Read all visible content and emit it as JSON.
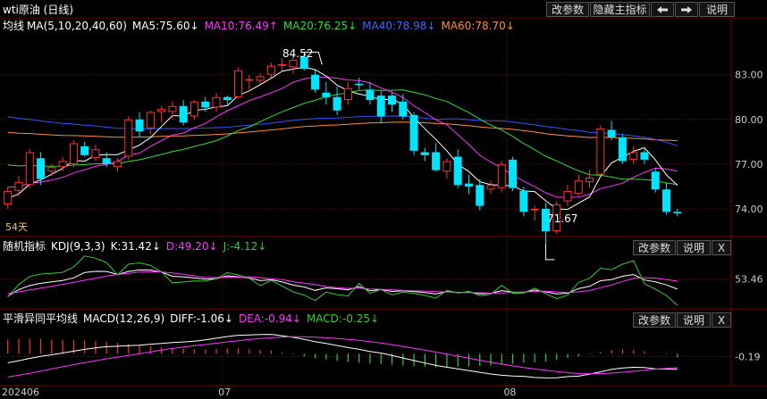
{
  "header": {
    "title": "wti原油 (日线)",
    "buttons": {
      "params": "改参数",
      "hide": "隐藏主指标",
      "left_icon": "arrow-left",
      "right_icon": "arrow-right",
      "help": "说明"
    }
  },
  "main_legend": {
    "name": "均线",
    "spec": "MA(5,10,20,40,60)",
    "ma5": "MA5:75.60↓",
    "ma10": "MA10:76.49↑",
    "ma20": "MA20:76.25↓",
    "ma40": "MA40:78.98↓",
    "ma60": "MA60:78.70↓"
  },
  "days_label": "54天",
  "high_annotation": "84.52",
  "low_annotation": "71.67",
  "kdj_legend": {
    "name": "随机指标",
    "spec": "KDJ(9,3,3)",
    "k": "K:31.42↓",
    "d": "D:49.20↓",
    "j": "J:-4.12↓"
  },
  "macd_legend": {
    "name": "平滑异同平均线",
    "spec": "MACD(12,26,9)",
    "diff": "DIFF:-1.06↓",
    "dea": "DEA:-0.94↓",
    "macd": "MACD:-0.25↓"
  },
  "panel_buttons": {
    "params": "改参数",
    "help": "说明",
    "close": "X"
  },
  "colors": {
    "up": "#ff3232",
    "down": "#00e5ff",
    "ma5": "#ffffff",
    "ma10": "#ff33ff",
    "ma20": "#33dd33",
    "ma40": "#3355ff",
    "ma60": "#ff8c3a",
    "grid": "#7a0000",
    "kdj_j": "#33cc33"
  },
  "chart_data": [
    {
      "type": "candlestick",
      "y_ticks": [
        "83.00",
        "80.00",
        "77.00",
        "74.00"
      ],
      "ylim": [
        72.2,
        85.8
      ],
      "x_ticks": [
        "202406",
        "07",
        "08"
      ],
      "candles": [
        [
          74.3,
          75.5,
          74.0,
          75.2
        ],
        [
          75.2,
          76.2,
          74.8,
          75.8
        ],
        [
          75.6,
          78.0,
          75.4,
          77.8
        ],
        [
          77.4,
          77.8,
          75.6,
          76.0
        ],
        [
          76.5,
          77.0,
          76.2,
          76.8
        ],
        [
          76.8,
          77.5,
          76.5,
          77.2
        ],
        [
          77.0,
          78.6,
          76.8,
          78.4
        ],
        [
          78.2,
          78.5,
          77.5,
          77.6
        ],
        [
          77.4,
          78.3,
          77.2,
          78.0
        ],
        [
          77.4,
          77.8,
          76.8,
          77.0
        ],
        [
          76.8,
          77.4,
          76.5,
          77.2
        ],
        [
          77.5,
          80.2,
          77.3,
          80.0
        ],
        [
          80.0,
          80.5,
          78.8,
          79.2
        ],
        [
          79.4,
          80.6,
          79.0,
          80.5
        ],
        [
          80.5,
          80.9,
          79.8,
          80.7
        ],
        [
          80.5,
          81.2,
          80.0,
          80.9
        ],
        [
          80.9,
          81.3,
          79.6,
          79.8
        ],
        [
          80.2,
          81.3,
          80.0,
          81.2
        ],
        [
          81.2,
          81.5,
          80.5,
          80.8
        ],
        [
          80.8,
          81.8,
          80.5,
          81.5
        ],
        [
          81.5,
          81.6,
          81.0,
          81.3
        ],
        [
          81.5,
          83.5,
          81.4,
          83.3
        ],
        [
          82.6,
          83.0,
          82.0,
          82.7
        ],
        [
          82.6,
          83.1,
          82.4,
          82.9
        ],
        [
          83.0,
          83.8,
          82.8,
          83.6
        ],
        [
          83.6,
          84.1,
          83.3,
          83.7
        ],
        [
          83.5,
          84.3,
          83.1,
          84.0
        ],
        [
          84.2,
          84.52,
          83.3,
          83.4
        ],
        [
          83.0,
          83.3,
          81.8,
          82.0
        ],
        [
          81.8,
          82.5,
          81.0,
          81.5
        ],
        [
          81.5,
          82.2,
          80.3,
          80.6
        ],
        [
          81.3,
          82.5,
          81.0,
          82.1
        ],
        [
          82.4,
          82.8,
          82.0,
          82.3
        ],
        [
          82.0,
          82.5,
          81.0,
          81.3
        ],
        [
          81.6,
          81.9,
          79.8,
          80.2
        ],
        [
          81.6,
          81.8,
          80.5,
          81.0
        ],
        [
          81.2,
          81.7,
          80.0,
          80.2
        ],
        [
          80.3,
          80.5,
          77.6,
          77.9
        ],
        [
          77.8,
          78.1,
          77.2,
          77.6
        ],
        [
          77.8,
          78.4,
          76.5,
          76.6
        ],
        [
          76.5,
          77.4,
          76.0,
          77.2
        ],
        [
          77.5,
          78.0,
          75.4,
          75.6
        ],
        [
          75.7,
          76.3,
          75.0,
          75.5
        ],
        [
          75.6,
          76.0,
          73.9,
          74.2
        ],
        [
          75.3,
          75.9,
          75.0,
          75.6
        ],
        [
          75.4,
          77.2,
          75.1,
          77.0
        ],
        [
          77.3,
          77.5,
          75.2,
          75.4
        ],
        [
          75.2,
          75.5,
          73.5,
          73.8
        ],
        [
          73.9,
          74.2,
          73.2,
          74.0
        ],
        [
          74.0,
          74.4,
          71.67,
          72.5
        ],
        [
          72.5,
          74.5,
          72.3,
          74.3
        ],
        [
          74.5,
          75.6,
          74.2,
          75.2
        ],
        [
          75.0,
          76.3,
          74.9,
          75.9
        ],
        [
          75.8,
          76.6,
          75.4,
          76.1
        ],
        [
          76.3,
          79.6,
          76.2,
          79.4
        ],
        [
          79.3,
          79.9,
          78.6,
          78.8
        ],
        [
          78.8,
          79.0,
          77.0,
          77.2
        ],
        [
          77.3,
          78.2,
          77.0,
          77.8
        ],
        [
          77.8,
          78.0,
          77.0,
          77.3
        ],
        [
          76.5,
          76.7,
          75.1,
          75.3
        ],
        [
          75.3,
          75.7,
          73.6,
          73.8
        ],
        [
          73.8,
          74.0,
          73.5,
          73.7
        ]
      ]
    },
    {
      "type": "line",
      "name": "KDJ",
      "y_ticks": [
        "53.46"
      ],
      "ylim": [
        -10,
        110
      ],
      "series": [
        {
          "name": "K",
          "values": [
            15.93,
            30.45,
            39.44,
            44.24,
            47.55,
            50.63,
            56.23,
            68.07,
            70.56,
            70.42,
            63.71,
            70.52,
            73.78,
            73.68,
            69.17,
            59.88,
            58.49,
            56.19,
            53.6,
            54.74,
            60.75,
            58.61,
            56.19,
            50.16,
            52.15,
            47.2,
            40.35,
            36.18,
            28.81,
            34.35,
            32.31,
            30.09,
            37.26,
            27.75,
            30.48,
            26.37,
            27.75,
            26.27,
            23.87,
            20.75,
            26.19,
            24.15,
            24.84,
            21.32,
            22.51,
            28.18,
            24.89,
            24.47,
            29.58,
            25.34,
            20.79,
            22.53,
            32.82,
            37.52,
            50.06,
            52.47,
            59.8,
            63.76,
            51.62,
            47.46,
            40.8,
            31.42
          ]
        },
        {
          "name": "D",
          "values": [
            21.42,
            25.48,
            29.46,
            33.38,
            37.89,
            41.94,
            46.55,
            51.06,
            55.56,
            60.15,
            64.03,
            66.28,
            69.11,
            69.83,
            69.46,
            67.24,
            64.16,
            60.64,
            57.28,
            56.96,
            57.96,
            57.77,
            58.64,
            56.86,
            54.51,
            52.45,
            47.89,
            44.73,
            41.29,
            37.35,
            34.88,
            33.04,
            33.62,
            31.8,
            31.16,
            29.75,
            28.59,
            28.06,
            27.1,
            25.75,
            25.2,
            24.11,
            23.77,
            23.42,
            22.45,
            23.3,
            24.21,
            24.87,
            26.39,
            26.77,
            25.32,
            23.85,
            25.49,
            28.27,
            34.62,
            40.6,
            48.46,
            55.17,
            56.74,
            55.93,
            52.61,
            49.2
          ]
        },
        {
          "name": "J",
          "values": [
            14.37,
            41.45,
            59.16,
            64.72,
            66.27,
            68.46,
            80.57,
            104.43,
            99.58,
            90.04,
            63.08,
            86.62,
            89.28,
            83.96,
            69.63,
            45.48,
            47.2,
            49.48,
            49.3,
            54.24,
            67.86,
            62.59,
            55.48,
            39.08,
            50.78,
            37.94,
            25.45,
            18.25,
            6.3,
            24.97,
            19.31,
            16.29,
            44.02,
            22.18,
            30.58,
            19.14,
            24.69,
            22.55,
            17.78,
            11.44,
            28.81,
            23.12,
            26.58,
            17.11,
            20.26,
            39.89,
            22.27,
            22.9,
            33.76,
            21.6,
            10.53,
            18.25,
            46.34,
            55.38,
            77.47,
            74.43,
            86.66,
            94.14,
            43.46,
            31.35,
            17.47,
            -4.12
          ]
        }
      ]
    },
    {
      "type": "bar+line",
      "name": "MACD",
      "y_ticks": [
        "-0.19"
      ],
      "ylim": [
        -2.1,
        1.9
      ],
      "series": [
        {
          "name": "DIFF",
          "values": [
            -0.61,
            -0.47,
            -0.31,
            -0.17,
            -0.07,
            0.05,
            0.18,
            0.3,
            0.4,
            0.48,
            0.51,
            0.55,
            0.58,
            0.65,
            0.7,
            0.76,
            0.8,
            0.86,
            0.94,
            1.06,
            1.17,
            1.26,
            1.28,
            1.31,
            1.32,
            1.23,
            1.12,
            0.98,
            0.82,
            0.7,
            0.56,
            0.42,
            0.3,
            0.16,
            0.05,
            -0.12,
            -0.29,
            -0.46,
            -0.63,
            -0.79,
            -0.91,
            -1.03,
            -1.15,
            -1.26,
            -1.37,
            -1.46,
            -1.51,
            -1.53,
            -1.61,
            -1.64,
            -1.63,
            -1.55,
            -1.52,
            -1.38,
            -1.23,
            -1.06,
            -0.96,
            -0.92,
            -0.93,
            -1.03,
            -1.04,
            -1.06
          ]
        },
        {
          "name": "DEA",
          "values": [
            -1.58,
            -1.46,
            -1.33,
            -1.18,
            -1.03,
            -0.88,
            -0.74,
            -0.6,
            -0.47,
            -0.34,
            -0.22,
            -0.11,
            0.01,
            0.13,
            0.25,
            0.36,
            0.46,
            0.55,
            0.63,
            0.72,
            0.81,
            0.89,
            0.97,
            1.04,
            1.09,
            1.14,
            1.16,
            1.16,
            1.13,
            1.09,
            1.04,
            0.98,
            0.91,
            0.82,
            0.73,
            0.62,
            0.5,
            0.38,
            0.25,
            0.12,
            -0.02,
            -0.16,
            -0.3,
            -0.44,
            -0.57,
            -0.7,
            -0.82,
            -0.93,
            -1.03,
            -1.12,
            -1.21,
            -1.28,
            -1.34,
            -1.35,
            -1.35,
            -1.31,
            -1.26,
            -1.19,
            -1.11,
            -1.04,
            -0.99,
            -0.94
          ]
        },
        {
          "name": "MACD",
          "values": [
            0.97,
            1.0,
            1.02,
            1.01,
            0.96,
            0.93,
            0.92,
            0.9,
            0.87,
            0.82,
            0.73,
            0.67,
            0.57,
            0.52,
            0.45,
            0.4,
            0.34,
            0.31,
            0.31,
            0.34,
            0.36,
            0.37,
            0.32,
            0.27,
            0.23,
            0.09,
            -0.04,
            -0.18,
            -0.31,
            -0.39,
            -0.48,
            -0.56,
            -0.61,
            -0.66,
            -0.69,
            -0.74,
            -0.79,
            -0.84,
            -0.88,
            -0.91,
            -0.89,
            -0.87,
            -0.85,
            -0.82,
            -0.8,
            -0.76,
            -0.69,
            -0.6,
            -0.57,
            -0.53,
            -0.42,
            -0.27,
            -0.18,
            -0.03,
            0.12,
            0.25,
            0.3,
            0.27,
            0.18,
            0.01,
            -0.05,
            -0.25
          ]
        }
      ]
    }
  ]
}
